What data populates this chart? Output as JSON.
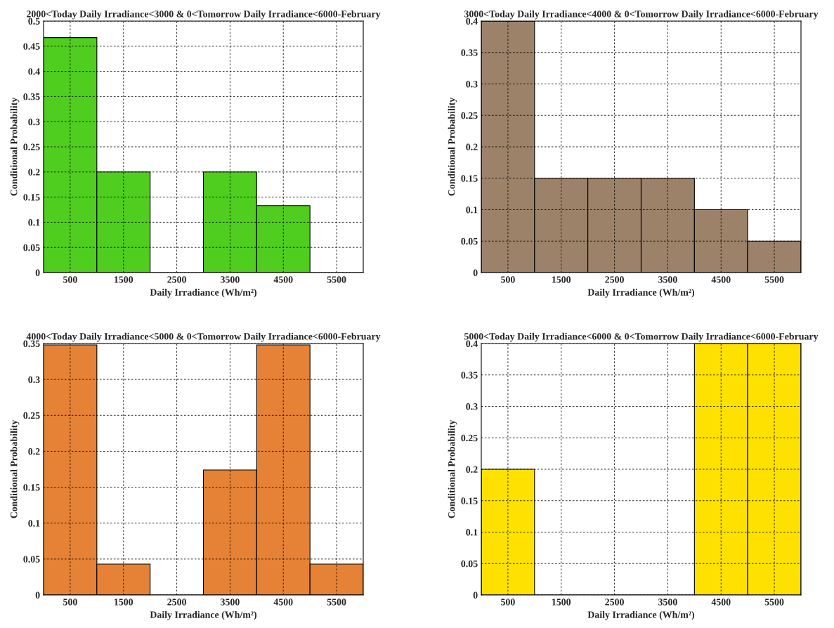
{
  "chart_data": [
    {
      "type": "histogram",
      "title": "2000<Today Daily Irradiance<3000 & 0<Tomorrow Daily Irradiance<6000-February",
      "xlabel": "Daily Irradiance (Wh/m²)",
      "ylabel": "Conditional Probability",
      "bins": [
        0,
        1000,
        2000,
        3000,
        4000,
        5000,
        6000
      ],
      "values": [
        0.467,
        0.2,
        0,
        0.2,
        0.133,
        0
      ],
      "color": "#4fce1f",
      "xlim": [
        0,
        6000
      ],
      "xticks": [
        500,
        1500,
        2500,
        3500,
        4500,
        5500
      ],
      "ylim": [
        0,
        0.5
      ],
      "yticks": [
        0,
        0.05,
        0.1,
        0.15,
        0.2,
        0.25,
        0.3,
        0.35,
        0.4,
        0.45,
        0.5
      ],
      "grid": true
    },
    {
      "type": "histogram",
      "title": "3000<Today Daily Irradiance<4000 & 0<Tomorrow Daily Irradiance<6000-February",
      "xlabel": "Daily Irradiance (Wh/m²)",
      "ylabel": "Conditional Probability",
      "bins": [
        0,
        1000,
        2000,
        3000,
        4000,
        5000,
        6000
      ],
      "values": [
        0.4,
        0.15,
        0.15,
        0.15,
        0.1,
        0.05
      ],
      "color": "#9b8268",
      "xlim": [
        0,
        6000
      ],
      "xticks": [
        500,
        1500,
        2500,
        3500,
        4500,
        5500
      ],
      "ylim": [
        0,
        0.4
      ],
      "yticks": [
        0,
        0.05,
        0.1,
        0.15,
        0.2,
        0.25,
        0.3,
        0.35,
        0.4
      ],
      "grid": true
    },
    {
      "type": "histogram",
      "title": "4000<Today Daily Irradiance<5000 & 0<Tomorrow Daily Irradiance<6000-February",
      "xlabel": "Daily Irradiance (Wh/m²)",
      "ylabel": "Conditional Probability",
      "bins": [
        0,
        1000,
        2000,
        3000,
        4000,
        5000,
        6000
      ],
      "values": [
        0.348,
        0.043,
        0,
        0.174,
        0.348,
        0.043
      ],
      "color": "#e68235",
      "xlim": [
        0,
        6000
      ],
      "xticks": [
        500,
        1500,
        2500,
        3500,
        4500,
        5500
      ],
      "ylim": [
        0,
        0.35
      ],
      "yticks": [
        0,
        0.05,
        0.1,
        0.15,
        0.2,
        0.25,
        0.3,
        0.35
      ],
      "grid": true
    },
    {
      "type": "histogram",
      "title": "5000<Today Daily Irradiance<6000 & 0<Tomorrow Daily Irradiance<6000-February",
      "xlabel": "Daily Irradiance (Wh/m²)",
      "ylabel": "Conditional Probability",
      "bins": [
        0,
        1000,
        2000,
        3000,
        4000,
        5000,
        6000
      ],
      "values": [
        0.2,
        0,
        0,
        0,
        0.4,
        0.4
      ],
      "color": "#ffe100",
      "xlim": [
        0,
        6000
      ],
      "xticks": [
        500,
        1500,
        2500,
        3500,
        4500,
        5500
      ],
      "ylim": [
        0,
        0.4
      ],
      "yticks": [
        0,
        0.05,
        0.1,
        0.15,
        0.2,
        0.25,
        0.3,
        0.35,
        0.4
      ],
      "grid": true
    }
  ]
}
